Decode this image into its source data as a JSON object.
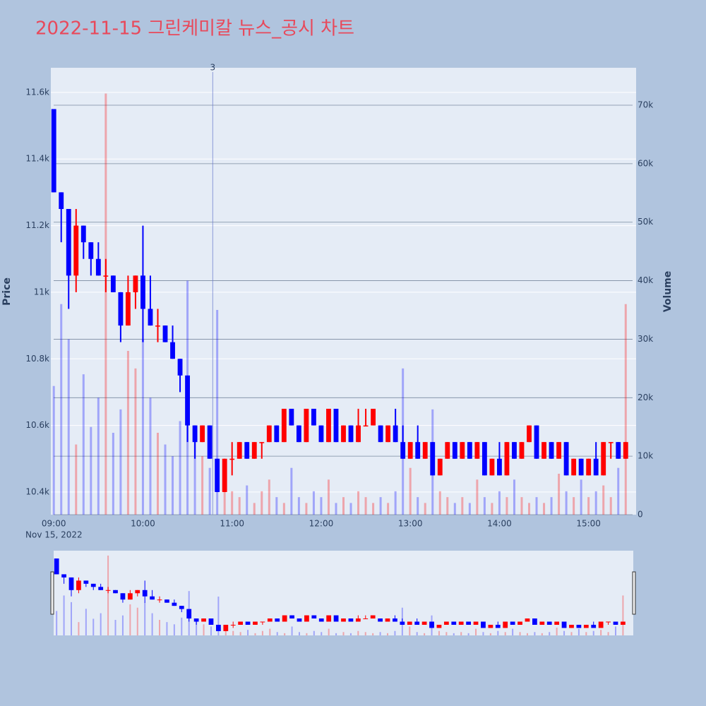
{
  "chart_data": {
    "type": "candlestick",
    "title": "2022-11-15 그린케미칼 뉴스_공시 차트",
    "ylabel": "Price",
    "y2label": "Volume",
    "date_label": "Nov 15, 2022",
    "increasing_color": "#ff0000",
    "decreasing_color": "#0000ff",
    "grid": true,
    "rangeslider": true,
    "x": [
      "09:00",
      "09:05",
      "09:10",
      "09:15",
      "09:20",
      "09:25",
      "09:30",
      "09:35",
      "09:40",
      "09:45",
      "09:50",
      "09:55",
      "10:00",
      "10:05",
      "10:10",
      "10:15",
      "10:20",
      "10:25",
      "10:30",
      "10:35",
      "10:40",
      "10:45",
      "10:50",
      "10:55",
      "11:00",
      "11:05",
      "11:10",
      "11:15",
      "11:20",
      "11:25",
      "11:30",
      "11:35",
      "11:40",
      "11:45",
      "11:50",
      "11:55",
      "12:00",
      "12:05",
      "12:10",
      "12:15",
      "12:20",
      "12:25",
      "12:30",
      "12:35",
      "12:40",
      "12:45",
      "12:50",
      "12:55",
      "13:00",
      "13:05",
      "13:10",
      "13:15",
      "13:20",
      "13:25",
      "13:30",
      "13:35",
      "13:40",
      "13:45",
      "13:50",
      "13:55",
      "14:00",
      "14:05",
      "14:10",
      "14:15",
      "14:20",
      "14:25",
      "14:30",
      "14:35",
      "14:40",
      "14:45",
      "14:50",
      "14:55",
      "15:00",
      "15:05",
      "15:10",
      "15:15",
      "15:20",
      "15:25"
    ],
    "open": [
      11550,
      11300,
      11250,
      11050,
      11200,
      11150,
      11100,
      11050,
      11050,
      11000,
      10900,
      11000,
      11050,
      10950,
      10900,
      10900,
      10850,
      10800,
      10750,
      10600,
      10550,
      10600,
      10500,
      10400,
      10500,
      10500,
      10550,
      10500,
      10550,
      10550,
      10600,
      10550,
      10650,
      10600,
      10550,
      10650,
      10600,
      10550,
      10650,
      10550,
      10600,
      10550,
      10600,
      10600,
      10600,
      10550,
      10600,
      10550,
      10500,
      10550,
      10500,
      10550,
      10450,
      10500,
      10550,
      10500,
      10550,
      10500,
      10550,
      10450,
      10500,
      10450,
      10550,
      10500,
      10550,
      10600,
      10500,
      10550,
      10500,
      10550,
      10450,
      10500,
      10450,
      10500,
      10450,
      10550,
      10550,
      10500
    ],
    "high": [
      11550,
      11300,
      11250,
      11250,
      11200,
      11150,
      11150,
      11100,
      11050,
      11000,
      11050,
      11050,
      11200,
      11050,
      10950,
      10900,
      10900,
      10800,
      10750,
      10600,
      10600,
      10600,
      10500,
      10500,
      10550,
      10550,
      10550,
      10550,
      10550,
      10600,
      10600,
      10650,
      10650,
      10600,
      10650,
      10650,
      10600,
      10650,
      10650,
      10600,
      10600,
      10650,
      10650,
      10650,
      10600,
      10600,
      10650,
      10600,
      10550,
      10600,
      10550,
      10550,
      10500,
      10550,
      10550,
      10550,
      10550,
      10550,
      10550,
      10500,
      10550,
      10550,
      10550,
      10550,
      10600,
      10600,
      10550,
      10550,
      10550,
      10550,
      10500,
      10500,
      10500,
      10550,
      10550,
      10550,
      10550,
      10550
    ],
    "low": [
      11300,
      11150,
      10950,
      11000,
      11100,
      11050,
      11050,
      11000,
      11000,
      10850,
      10900,
      10950,
      10850,
      10900,
      10850,
      10850,
      10800,
      10700,
      10550,
      10500,
      10550,
      10500,
      10400,
      10400,
      10450,
      10500,
      10500,
      10500,
      10500,
      10550,
      10550,
      10550,
      10600,
      10550,
      10550,
      10600,
      10550,
      10550,
      10550,
      10550,
      10550,
      10550,
      10600,
      10600,
      10550,
      10550,
      10550,
      10500,
      10500,
      10500,
      10500,
      10450,
      10450,
      10500,
      10500,
      10500,
      10500,
      10500,
      10450,
      10450,
      10450,
      10450,
      10500,
      10500,
      10550,
      10500,
      10500,
      10500,
      10500,
      10450,
      10450,
      10450,
      10450,
      10450,
      10450,
      10500,
      10500,
      10500
    ],
    "close": [
      11300,
      11250,
      11050,
      11200,
      11150,
      11100,
      11050,
      11050,
      11000,
      10900,
      11000,
      11050,
      10950,
      10900,
      10900,
      10850,
      10800,
      10750,
      10600,
      10550,
      10600,
      10500,
      10400,
      10500,
      10500,
      10550,
      10500,
      10550,
      10550,
      10600,
      10550,
      10650,
      10600,
      10550,
      10650,
      10600,
      10550,
      10650,
      10550,
      10600,
      10550,
      10600,
      10600,
      10650,
      10550,
      10600,
      10550,
      10500,
      10550,
      10500,
      10550,
      10450,
      10500,
      10550,
      10500,
      10550,
      10500,
      10550,
      10450,
      10500,
      10450,
      10550,
      10500,
      10550,
      10600,
      10500,
      10550,
      10500,
      10550,
      10450,
      10500,
      10450,
      10500,
      10450,
      10550,
      10550,
      10500,
      10550
    ],
    "volume": [
      22000,
      36000,
      30000,
      12000,
      24000,
      15000,
      20000,
      72000,
      14000,
      18000,
      28000,
      25000,
      30000,
      20000,
      14000,
      12000,
      10000,
      16000,
      40000,
      14000,
      10000,
      8000,
      35000,
      6000,
      4000,
      3000,
      5000,
      2000,
      4000,
      6000,
      3000,
      2000,
      8000,
      3000,
      2000,
      4000,
      3000,
      6000,
      2000,
      3000,
      2000,
      4000,
      3000,
      2000,
      3000,
      2000,
      4000,
      25000,
      8000,
      3000,
      2000,
      18000,
      4000,
      3000,
      2000,
      3000,
      2000,
      6000,
      3000,
      2000,
      4000,
      3000,
      6000,
      3000,
      2000,
      3000,
      2000,
      3000,
      7000,
      4000,
      3000,
      6000,
      3000,
      4000,
      5000,
      3000,
      8000,
      36000
    ],
    "xlim": [
      "08:58",
      "15:32"
    ],
    "xticks": [
      "09:00",
      "10:00",
      "11:00",
      "12:00",
      "13:00",
      "14:00",
      "15:00"
    ],
    "ylim": [
      10332,
      11674
    ],
    "yticks": [
      {
        "value": 10400,
        "label": "10.4k"
      },
      {
        "value": 10600,
        "label": "10.6k"
      },
      {
        "value": 10800,
        "label": "10.8k"
      },
      {
        "value": 11000,
        "label": "11k"
      },
      {
        "value": 11200,
        "label": "11.2k"
      },
      {
        "value": 11400,
        "label": "11.4k"
      },
      {
        "value": 11600,
        "label": "11.6k"
      }
    ],
    "y2lim": [
      0,
      76400
    ],
    "y2ticks": [
      0,
      {
        "value": 10000,
        "label": "10k"
      },
      {
        "value": 20000,
        "label": "20k"
      },
      {
        "value": 30000,
        "label": "30k"
      },
      {
        "value": 40000,
        "label": "40k"
      },
      {
        "value": 50000,
        "label": "50k"
      },
      {
        "value": 60000,
        "label": "60k"
      },
      {
        "value": 70000,
        "label": "70k"
      }
    ],
    "annotations": [
      {
        "x": "10:47",
        "text": "3"
      }
    ]
  }
}
